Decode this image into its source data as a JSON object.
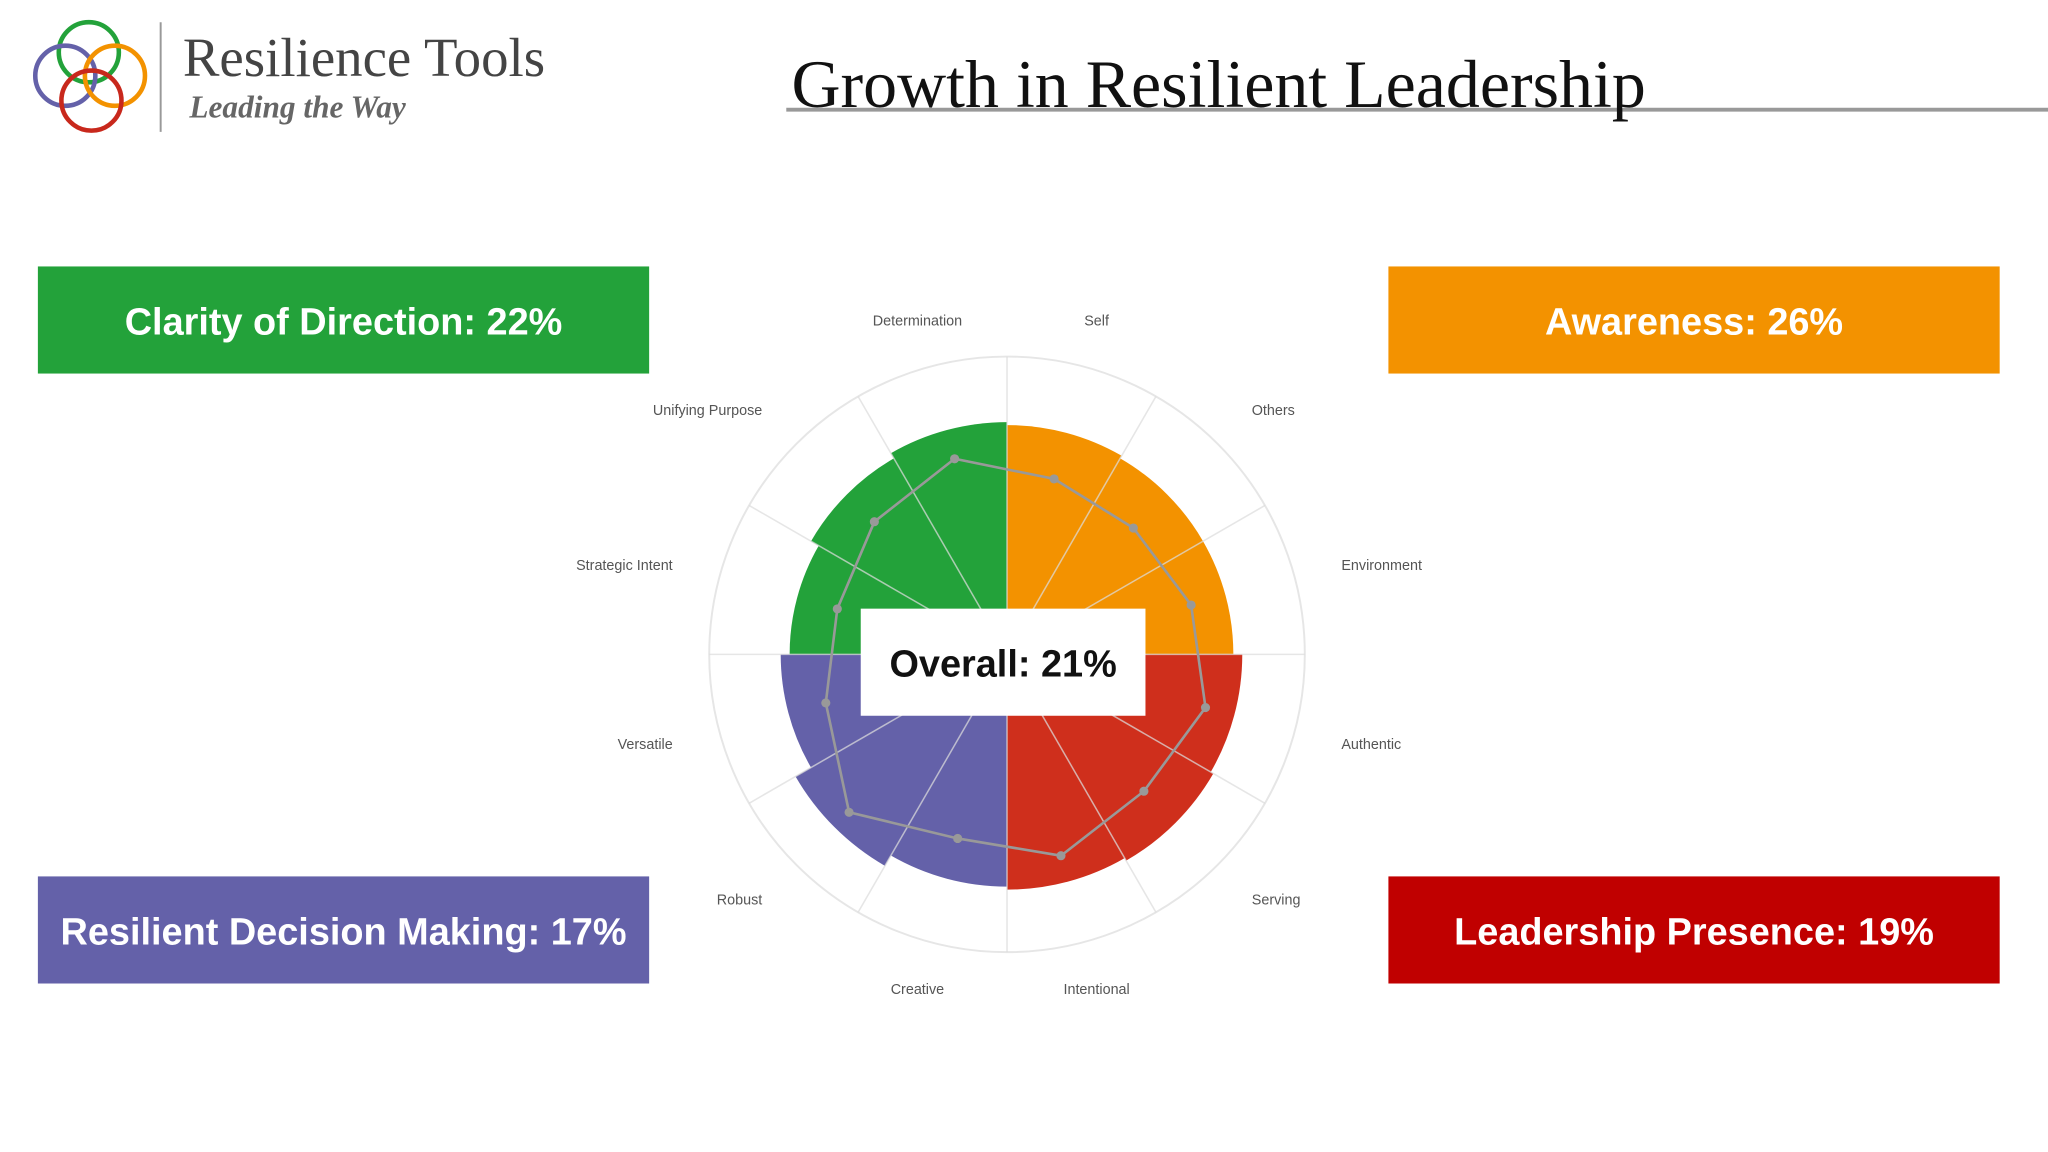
{
  "header": {
    "brand": "Resilience Tools",
    "tagline": "Leading the Way"
  },
  "title": "Growth in Resilient Leadership",
  "callouts": [
    {
      "text": "Clarity of Direction: 22%",
      "color": "#23a23a"
    },
    {
      "text": "Awareness: 26%",
      "color": "#f39200"
    },
    {
      "text": "Resilient Decision Making: 17%",
      "color": "#6461a9"
    },
    {
      "text": "Leadership Presence: 19%",
      "color": "#c00000"
    }
  ],
  "chart_data": {
    "type": "polar",
    "center_label": "Overall: 21%",
    "categories": [
      "Self",
      "Others",
      "Environment",
      "Authentic",
      "Serving",
      "Intentional",
      "Creative",
      "Robust",
      "Versatile",
      "Strategic Intent",
      "Unifying Purpose",
      "Determination"
    ],
    "values": [
      77,
      76,
      76,
      79,
      80,
      79,
      78,
      82,
      76,
      73,
      76,
      78
    ],
    "colors": [
      "#f39200",
      "#f39200",
      "#f39200",
      "#cf2f1c",
      "#cf2f1c",
      "#cf2f1c",
      "#6461a9",
      "#6461a9",
      "#6461a9",
      "#23a23a",
      "#23a23a",
      "#23a23a"
    ],
    "overlay": {
      "values": [
        61,
        60,
        64,
        69,
        65,
        70,
        64,
        75,
        63,
        59,
        63,
        68
      ],
      "color": "#999999"
    },
    "rlim": [
      0,
      100
    ]
  }
}
